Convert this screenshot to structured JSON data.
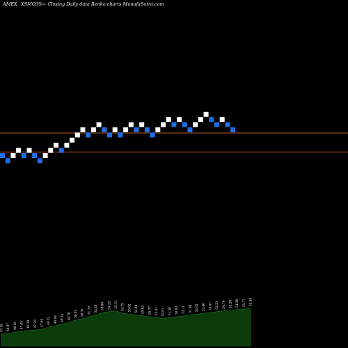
{
  "header": {
    "exchange": "AMEX",
    "symbol": "XSMO",
    "change": "3%",
    "tail": "~ Closing Daily data Renko charts MunafaSutra.com"
  },
  "colors": {
    "background": "#000000",
    "up_brick": "#ffffff",
    "down_brick": "#1e6fe6",
    "level_line": "#b85a2a",
    "volume_fill": "#0b3a0b",
    "volume_edge": "#1f7a1f"
  },
  "chart_data": [
    {
      "type": "renko",
      "directions": [
        "d",
        "d",
        "u",
        "u",
        "d",
        "u",
        "d",
        "d",
        "u",
        "u",
        "u",
        "d",
        "u",
        "u",
        "u",
        "u",
        "d",
        "u",
        "u",
        "d",
        "d",
        "u",
        "d",
        "u",
        "u",
        "d",
        "u",
        "d",
        "d",
        "u",
        "u",
        "u",
        "d",
        "u",
        "d",
        "d",
        "u",
        "u",
        "u",
        "d",
        "d",
        "u",
        "d",
        "d"
      ],
      "brick_levels": [
        0,
        -1,
        0,
        1,
        0,
        1,
        0,
        -1,
        0,
        1,
        2,
        1,
        2,
        3,
        4,
        5,
        4,
        5,
        6,
        5,
        4,
        5,
        4,
        5,
        6,
        5,
        6,
        5,
        4,
        5,
        6,
        7,
        6,
        7,
        6,
        5,
        6,
        7,
        8,
        7,
        6,
        7,
        6,
        5
      ],
      "horizontal_levels": [
        4.4,
        0.7
      ],
      "grid": false
    },
    {
      "type": "area",
      "label": "Volume",
      "values": [
        28,
        30,
        33,
        35,
        37,
        38,
        40,
        45,
        48,
        52,
        56,
        62,
        65,
        70,
        74,
        80,
        82,
        84,
        78,
        76,
        74,
        72,
        70,
        68,
        66,
        68,
        70,
        72,
        74,
        76,
        78,
        80,
        82,
        84,
        85,
        87,
        88,
        90
      ]
    }
  ],
  "volume_labels": [
    "47.18",
    "46.97",
    "46.16",
    "47.05",
    "46.29",
    "47.23",
    "47.64",
    "48.52",
    "48.08",
    "49.34",
    "48.70",
    "50.01",
    "50.31",
    "51.79",
    "52.30",
    "53.00",
    "54.23",
    "55.31",
    "54.75",
    "53.02",
    "54.46",
    "55.02",
    "55.37",
    "53.81",
    "52.81",
    "51.30",
    "50.93",
    "52.11",
    "51.68",
    "52.62",
    "53.00",
    "55.07",
    "53.33",
    "54.79",
    "53.28",
    "54.30",
    "55.77",
    "55.88"
  ]
}
